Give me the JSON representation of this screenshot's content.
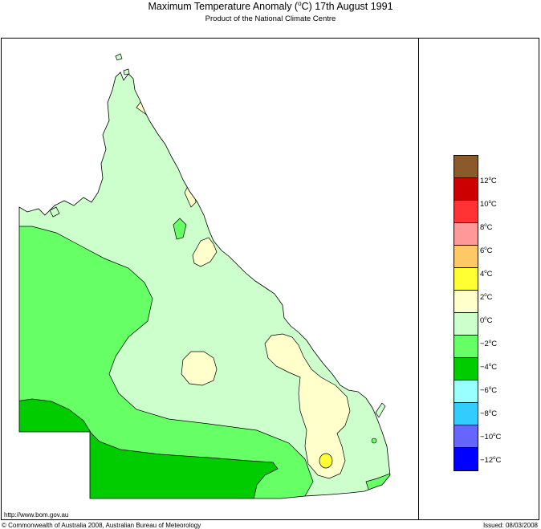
{
  "header": {
    "title_prefix": "Maximum Temperature Anomaly (",
    "title_deg": "o",
    "title_suffix": "C)  17th August 1991",
    "subtitle": "Product of the National Climate Centre"
  },
  "legend": {
    "classes": [
      {
        "color": "#8b5a2b"
      },
      {
        "color": "#cc0000",
        "label": "12",
        "unit": "C"
      },
      {
        "color": "#ff3333",
        "label": "10",
        "unit": "C"
      },
      {
        "color": "#ff9999",
        "label": "8",
        "unit": "C"
      },
      {
        "color": "#ffc866",
        "label": "6",
        "unit": "C"
      },
      {
        "color": "#ffff33",
        "label": "4",
        "unit": "C"
      },
      {
        "color": "#ffffcc",
        "label": "2",
        "unit": "C"
      },
      {
        "color": "#ccffcc",
        "label": "0",
        "unit": "C"
      },
      {
        "color": "#66ff66",
        "label": "−2",
        "unit": "C"
      },
      {
        "color": "#00cc00",
        "label": "−4",
        "unit": "C"
      },
      {
        "color": "#99ffff",
        "label": "−6",
        "unit": "C"
      },
      {
        "color": "#33ccff",
        "label": "−8",
        "unit": "C"
      },
      {
        "color": "#6666ff",
        "label": "−10",
        "unit": "C"
      },
      {
        "color": "#0000ff",
        "label": "−12",
        "unit": "C"
      }
    ],
    "deg": "o"
  },
  "footer": {
    "url": "http://www.bom.gov.au",
    "copyright": "© Commonwealth of Australia 2008, Australian Bureau of Meteorology",
    "issued": "Issued: 08/03/2008"
  },
  "map_colors": {
    "base": "#ccffcc",
    "minus2_4": "#66ff66",
    "minus4_6": "#00cc00",
    "zero_2": "#ffffcc",
    "two_4": "#ffff33"
  }
}
